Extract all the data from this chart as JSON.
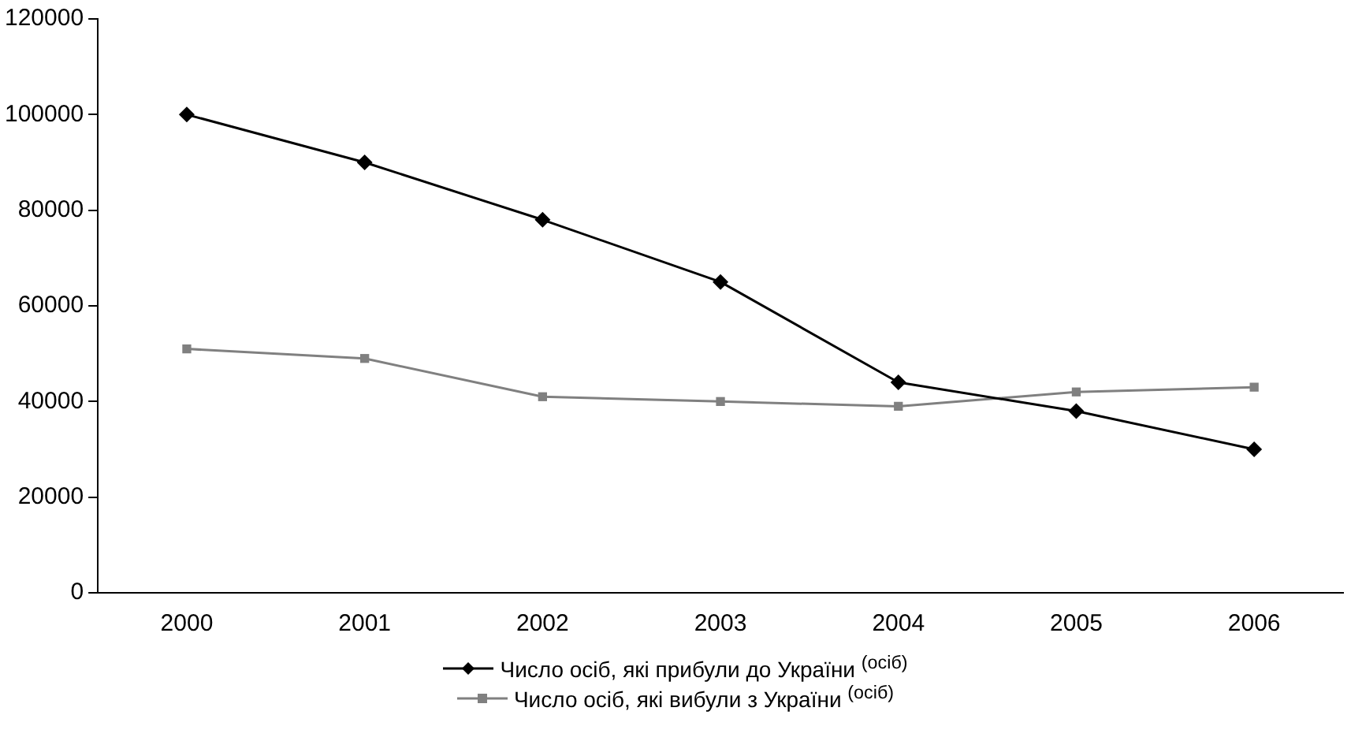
{
  "chart_data": {
    "type": "line",
    "categories": [
      "2000",
      "2001",
      "2002",
      "2003",
      "2004",
      "2005",
      "2006"
    ],
    "series": [
      {
        "name": "Число осіб, які прибули до України $^{(осіб)}$",
        "color": "#000000",
        "marker": "diamond",
        "values": [
          100000,
          90000,
          78000,
          65000,
          44000,
          38000,
          30000
        ]
      },
      {
        "name": "Число осіб, які вибули з України $^{(осіб)}$",
        "color": "#808080",
        "marker": "square",
        "values": [
          51000,
          49000,
          41000,
          40000,
          39000,
          42000,
          43000
        ]
      }
    ],
    "ylim": [
      0,
      120000
    ],
    "yticks": [
      0,
      20000,
      40000,
      60000,
      80000,
      100000,
      120000
    ],
    "grid": false,
    "legend": "bottom",
    "line_style": "solid"
  }
}
